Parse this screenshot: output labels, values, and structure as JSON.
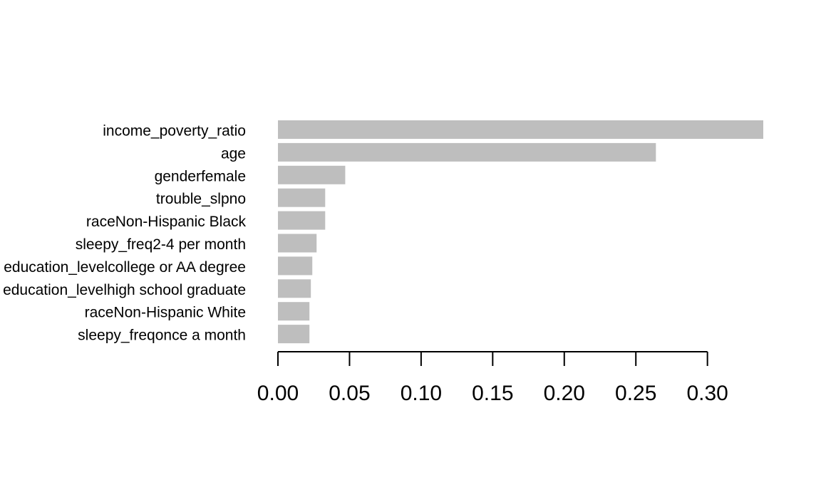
{
  "chart_data": {
    "type": "barh",
    "categories": [
      "income_poverty_ratio",
      "age",
      "genderfemale",
      "trouble_slpno",
      "raceNon-Hispanic Black",
      "sleepy_freq2-4 per month",
      "education_levelcollege or AA degree",
      "education_levelhigh school graduate",
      "raceNon-Hispanic White",
      "sleepy_freqonce a month"
    ],
    "values": [
      0.339,
      0.264,
      0.047,
      0.033,
      0.033,
      0.027,
      0.024,
      0.023,
      0.022,
      0.022
    ],
    "color": "#bebebe",
    "xlim": [
      0,
      0.339
    ],
    "xticks": [
      {
        "value": 0,
        "label": "0.00"
      },
      0.05,
      {
        "value": 0.1,
        "label": "0.10"
      },
      0.15,
      {
        "value": 0.2,
        "label": "0.20"
      },
      0.25,
      {
        "value": 0.3,
        "label": "0.30"
      }
    ]
  }
}
